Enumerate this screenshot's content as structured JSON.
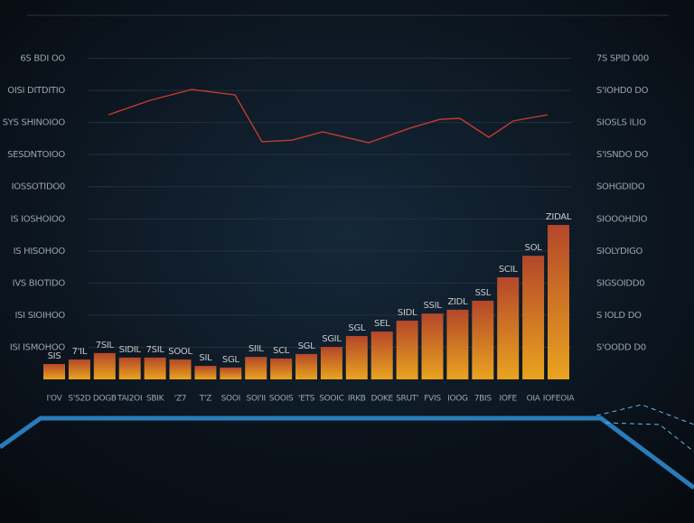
{
  "chart_data": {
    "type": "bar",
    "categories": [
      "I'OV",
      "S'S2D",
      "DOGB",
      "TAI2OI",
      "SBIK",
      "'Z7",
      "T'Z",
      "SOOI",
      "SOI'II",
      "SOOIS",
      "'ETS",
      "SOOIC",
      "IRKB",
      "DOKE",
      "SRUT'",
      "FVIS",
      "IOOG",
      "7BIS",
      "IOFE",
      "OIA",
      "IOFEOIA"
    ],
    "values": [
      0.48,
      0.62,
      0.82,
      0.68,
      0.68,
      0.62,
      0.42,
      0.37,
      0.7,
      0.65,
      0.79,
      1.01,
      1.35,
      1.49,
      1.83,
      2.05,
      2.17,
      2.45,
      3.18,
      3.85,
      4.81
    ],
    "bar_labels": [
      "SIS",
      "7'IL",
      "7SIL",
      "SIDIL",
      "7SIL",
      "SOOL",
      "SIL",
      "SGL",
      "SIIL",
      "SCL",
      "SGL",
      "SGIL",
      "SGL",
      "SEL",
      "SIDL",
      "SSIL",
      "ZIDL",
      "SSL",
      "SCIL",
      "SOL",
      "ZIDAL"
    ],
    "color_top": "#b4472a",
    "color_bottom": "#e9a41f",
    "line": {
      "color": "#c23b2e",
      "x": [
        2.15,
        3.8,
        5.45,
        7.17,
        8.24,
        9.43,
        10.65,
        12.47,
        14.09,
        15.3,
        16.09,
        17.24,
        18.21,
        19.57
      ],
      "values": [
        8.24,
        8.69,
        9.03,
        8.86,
        7.4,
        7.45,
        7.71,
        7.37,
        7.82,
        8.1,
        8.13,
        7.54,
        8.05,
        8.24
      ]
    },
    "xlim": [
      -0.5,
      20.5
    ],
    "ylim": [
      0,
      11
    ],
    "yticks": [
      {
        "value": 1,
        "label": "ISI ISMOHOO"
      },
      {
        "value": 2,
        "label": "ISI SIOIHOO"
      },
      {
        "value": 3,
        "label": "IVS BIOTIDO"
      },
      {
        "value": 4,
        "label": "IS HISOHOO"
      },
      {
        "value": 5,
        "label": "IS IOSHOIOO"
      },
      {
        "value": 6,
        "label": "IOSSOTIDO0"
      },
      {
        "value": 7,
        "label": "SESDNTOIOO"
      },
      {
        "value": 8,
        "label": "SYS SHINOIOO"
      },
      {
        "value": 9,
        "label": "OISI DITDITIO"
      },
      {
        "value": 10,
        "label": "6S BDI OO"
      }
    ],
    "y2lim": [
      0,
      11
    ],
    "y2ticks": [
      {
        "value": 1,
        "label": "S'OODD D0"
      },
      {
        "value": 2,
        "label": "S IOLD DO"
      },
      {
        "value": 3,
        "label": "SIGSOIDD0"
      },
      {
        "value": 4,
        "label": "SIOLYDIGO"
      },
      {
        "value": 5,
        "label": "SIOOOHDIO"
      },
      {
        "value": 6,
        "label": "SOHGDIDO"
      },
      {
        "value": 7,
        "label": "S'ISNDO DO"
      },
      {
        "value": 8,
        "label": "SIOSLS ILIO"
      },
      {
        "value": 9,
        "label": "S'IOHD0 DO"
      },
      {
        "value": 10,
        "label": "7S SPID 000"
      }
    ],
    "grid": true
  }
}
